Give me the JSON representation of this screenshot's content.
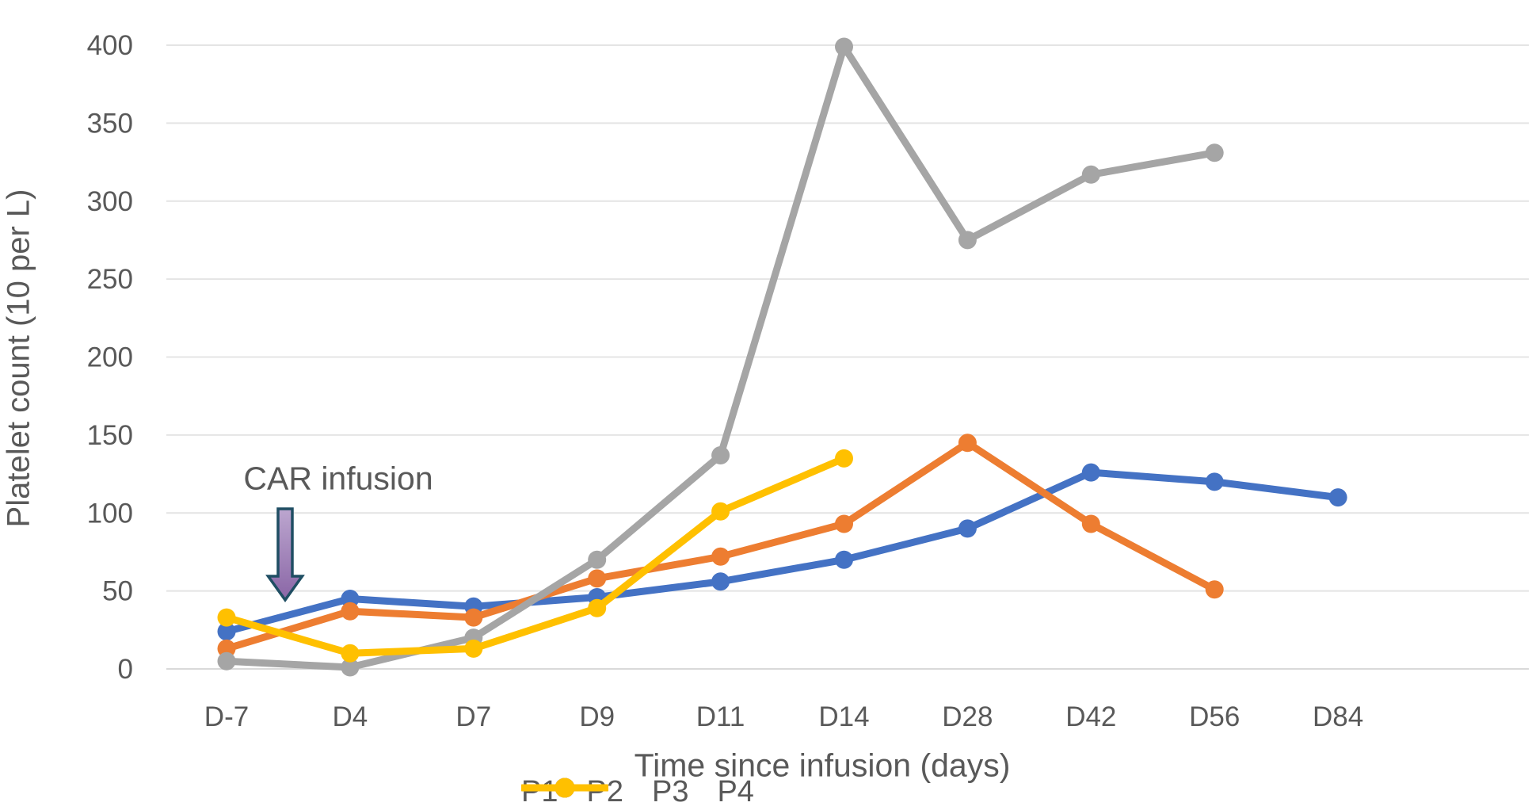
{
  "chart_data": {
    "type": "line",
    "title": "",
    "categories": [
      "D-7",
      "D4",
      "D7",
      "D9",
      "D11",
      "D14",
      "D28",
      "D42",
      "D56",
      "D84"
    ],
    "series": [
      {
        "name": "P1",
        "color": "#4472C4",
        "values": [
          24,
          45,
          40,
          46,
          56,
          70,
          90,
          126,
          120,
          110
        ]
      },
      {
        "name": "P2",
        "color": "#ED7D31",
        "values": [
          13,
          37,
          33,
          58,
          72,
          93,
          145,
          93,
          51,
          null
        ]
      },
      {
        "name": "P3",
        "color": "#A5A5A5",
        "values": [
          5,
          1,
          20,
          70,
          137,
          399,
          275,
          317,
          331,
          null
        ]
      },
      {
        "name": "P4",
        "color": "#FFC000",
        "values": [
          33,
          10,
          13,
          39,
          101,
          135,
          null,
          null,
          null,
          null
        ]
      }
    ],
    "xlabel": "Time since infusion (days)",
    "ylabel": "Platelet count (10 per L)",
    "ylim": [
      0,
      400
    ],
    "ytick_step": 50,
    "grid": true,
    "legend_position": "bottom"
  },
  "annotation": {
    "text": "CAR infusion",
    "arrow_fill_top": "#BCA6CF",
    "arrow_fill_bottom": "#8A66A6",
    "arrow_border": "#1F4E63"
  },
  "colors": {
    "text": "#595959",
    "gridline": "#E4E4E4",
    "baseline": "#D9D9D9"
  }
}
